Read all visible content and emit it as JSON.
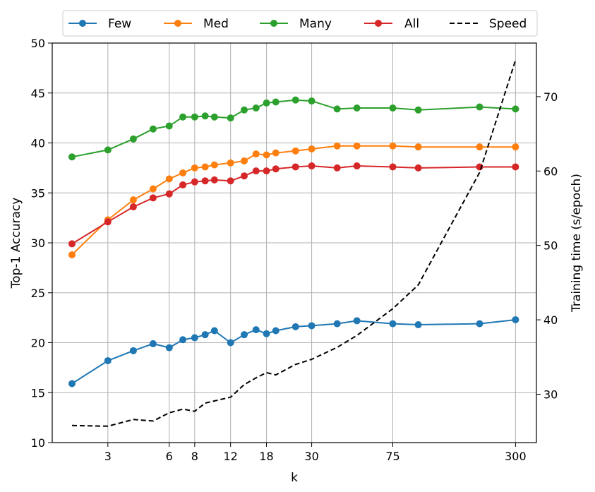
{
  "chart_data": {
    "type": "line",
    "xlabel": "k",
    "ylabel": "Top-1 Accuracy",
    "y2label": "Training time (s/epoch)",
    "xscale": "log",
    "xlim": [
      1.6,
      380
    ],
    "ylim": [
      10,
      50
    ],
    "y2lim": [
      23.5,
      77.2
    ],
    "x_ticks": [
      3,
      6,
      8,
      12,
      18,
      30,
      75,
      300
    ],
    "x_tick_labels": [
      "3",
      "6",
      "8",
      "12",
      "18",
      "30",
      "75",
      "300"
    ],
    "y_ticks": [
      10,
      15,
      20,
      25,
      30,
      35,
      40,
      45,
      50
    ],
    "y_tick_labels": [
      "10",
      "15",
      "20",
      "25",
      "30",
      "35",
      "40",
      "45",
      "50"
    ],
    "y2_ticks": [
      30,
      40,
      50,
      60,
      70
    ],
    "y2_tick_labels": [
      "30",
      "40",
      "50",
      "60",
      "70"
    ],
    "grid": true,
    "legend_position": "top",
    "x": [
      2,
      3,
      4,
      5,
      6,
      7,
      8,
      9,
      10,
      12,
      14,
      16,
      18,
      20,
      25,
      30,
      40,
      50,
      75,
      100,
      200,
      300
    ],
    "series": [
      {
        "name": "Few",
        "color": "#1f77b4",
        "marker": "circle",
        "axis": "left",
        "values": [
          15.9,
          18.2,
          19.2,
          19.9,
          19.5,
          20.3,
          20.5,
          20.8,
          21.2,
          20.0,
          20.8,
          21.3,
          20.9,
          21.2,
          21.6,
          21.7,
          21.9,
          22.2,
          21.9,
          21.8,
          21.9,
          22.3
        ]
      },
      {
        "name": "Med",
        "color": "#ff7f0e",
        "marker": "circle",
        "axis": "left",
        "values": [
          28.8,
          32.3,
          34.3,
          35.4,
          36.4,
          37.0,
          37.5,
          37.6,
          37.8,
          38.0,
          38.2,
          38.9,
          38.8,
          39.0,
          39.2,
          39.4,
          39.7,
          39.7,
          39.7,
          39.6,
          39.6,
          39.6
        ]
      },
      {
        "name": "Many",
        "color": "#2ca02c",
        "marker": "circle",
        "axis": "left",
        "values": [
          38.6,
          39.3,
          40.4,
          41.4,
          41.7,
          42.6,
          42.6,
          42.7,
          42.6,
          42.5,
          43.3,
          43.5,
          44.0,
          44.1,
          44.3,
          44.2,
          43.4,
          43.5,
          43.5,
          43.3,
          43.6,
          43.4
        ]
      },
      {
        "name": "All",
        "color": "#d62728",
        "marker": "circle",
        "axis": "left",
        "values": [
          29.9,
          32.1,
          33.6,
          34.5,
          34.9,
          35.8,
          36.1,
          36.2,
          36.3,
          36.2,
          36.7,
          37.2,
          37.2,
          37.4,
          37.6,
          37.7,
          37.5,
          37.7,
          37.6,
          37.5,
          37.6,
          37.6
        ]
      },
      {
        "name": "Speed",
        "color": "#000000",
        "marker": "none",
        "dash": "dashed",
        "axis": "right",
        "values": [
          25.8,
          25.7,
          26.6,
          26.4,
          27.5,
          28.0,
          27.7,
          28.8,
          29.1,
          29.6,
          31.3,
          32.2,
          32.9,
          32.6,
          34.0,
          34.7,
          36.3,
          37.9,
          41.5,
          44.7,
          59.8,
          74.9
        ]
      }
    ]
  }
}
